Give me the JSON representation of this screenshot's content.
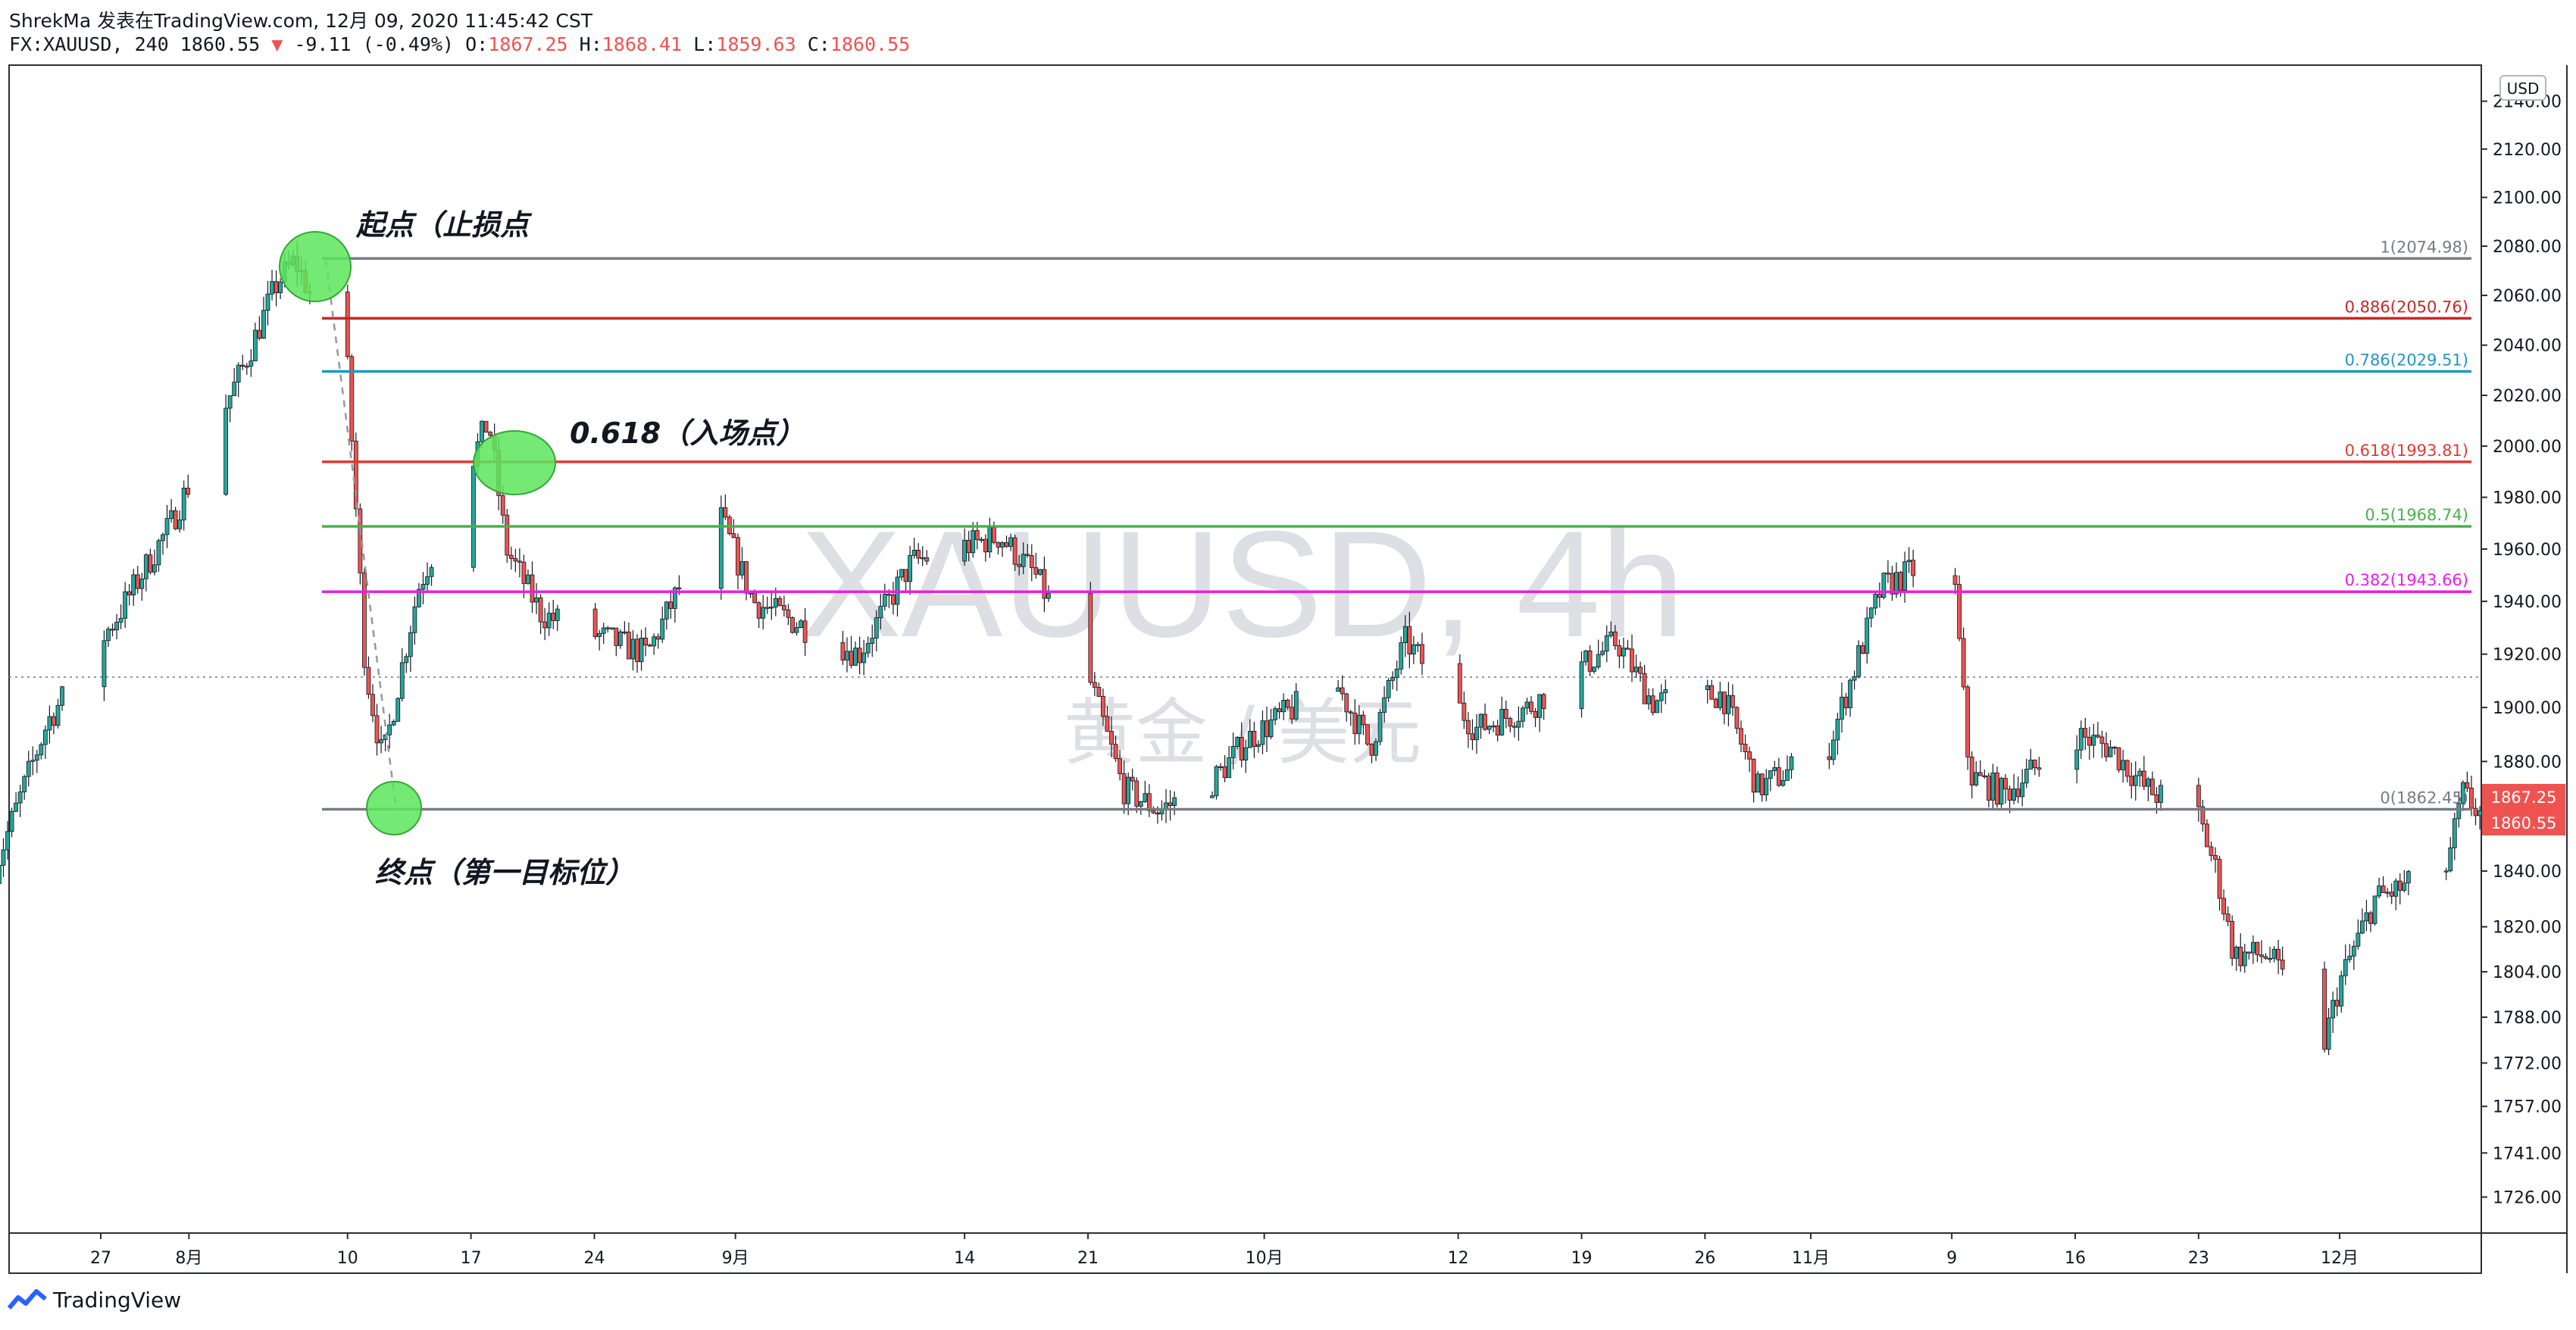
{
  "header": {
    "author_line": "ShrekMa 发表在TradingView.com, 12月 09, 2020 11:45:42 CST",
    "symbol": "FX:XAUUSD, 240",
    "last_price": "1860.55",
    "change": "-9.11 (-0.49%)",
    "o_label": "O:",
    "o_value": "1867.25",
    "h_label": "H:",
    "h_value": "1868.41",
    "l_label": "L:",
    "l_value": "1859.63",
    "c_label": "C:",
    "c_value": "1860.55"
  },
  "footer": {
    "brand": "TradingView"
  },
  "colors": {
    "up": "#26a69a",
    "down": "#ef5350",
    "accent": "#2962ff"
  },
  "chart_data": {
    "type": "candlestick",
    "title": "",
    "watermark": "XAUUSD, 4h",
    "watermark_sub": "黄金 / 美元",
    "currency_badge": "USD",
    "y_log_scale": true,
    "y_range": [
      1716,
      2150
    ],
    "y_ticks": [
      "2140.00",
      "2120.00",
      "2100.00",
      "2080.00",
      "2060.00",
      "2040.00",
      "2020.00",
      "2000.00",
      "1980.00",
      "1960.00",
      "1940.00",
      "1920.00",
      "1900.00",
      "1880.00",
      "1860.00",
      "1840.00",
      "1820.00",
      "1804.00",
      "1788.00",
      "1772.00",
      "1757.00",
      "1741.00",
      "1726.00"
    ],
    "x_ticks": [
      "27",
      "8月",
      "10",
      "17",
      "24",
      "9月",
      "14",
      "21",
      "10月",
      "12",
      "19",
      "26",
      "11月",
      "9",
      "16",
      "23",
      "12月"
    ],
    "price_markers": [
      {
        "label": "1867.25",
        "value": 1867.25
      },
      {
        "label": "1860.55",
        "value": 1860.55
      }
    ],
    "fib_levels": [
      {
        "ratio": "1",
        "value": 2074.98,
        "label": "1(2074.98)",
        "color": "#787b86"
      },
      {
        "ratio": "0.886",
        "value": 2050.76,
        "label": "0.886(2050.76)",
        "color": "#c62828"
      },
      {
        "ratio": "0.786",
        "value": 2029.51,
        "label": "0.786(2029.51)",
        "color": "#2196c4"
      },
      {
        "ratio": "0.618",
        "value": 1993.81,
        "label": "0.618(1993.81)",
        "color": "#e53935"
      },
      {
        "ratio": "0.5",
        "value": 1968.74,
        "label": "0.5(1968.74)",
        "color": "#4caf50"
      },
      {
        "ratio": "0.382",
        "value": 1943.66,
        "label": "0.382(1943.66)",
        "color": "#e91ee9"
      },
      {
        "ratio": "0",
        "value": 1862.45,
        "label": "0(1862.45)",
        "color": "#787b86"
      }
    ],
    "annotations": [
      {
        "text": "起点（止损点",
        "near": "1(2074.98)"
      },
      {
        "text": "0.618（入场点）",
        "near": "0.618(1993.81)"
      },
      {
        "text": "终点（第一目标位）",
        "near": "0(1862.45)"
      }
    ],
    "series": [
      {
        "date": "2020-07-21",
        "close": 1841
      },
      {
        "date": "2020-07-24",
        "close": 1895
      },
      {
        "date": "2020-07-28",
        "close": 1935
      },
      {
        "date": "2020-07-31",
        "close": 1970
      },
      {
        "date": "2020-08-04",
        "close": 2030
      },
      {
        "date": "2020-08-06",
        "close": 2065
      },
      {
        "date": "2020-08-07",
        "close": 2074
      },
      {
        "date": "2020-08-10",
        "close": 2030
      },
      {
        "date": "2020-08-11",
        "close": 1915
      },
      {
        "date": "2020-08-12",
        "close": 1880
      },
      {
        "date": "2020-08-14",
        "close": 1945
      },
      {
        "date": "2020-08-18",
        "close": 2010
      },
      {
        "date": "2020-08-19",
        "close": 1960
      },
      {
        "date": "2020-08-21",
        "close": 1935
      },
      {
        "date": "2020-08-25",
        "close": 1925
      },
      {
        "date": "2020-08-27",
        "close": 1920
      },
      {
        "date": "2020-08-31",
        "close": 1975
      },
      {
        "date": "2020-09-02",
        "close": 1940
      },
      {
        "date": "2020-09-08",
        "close": 1920
      },
      {
        "date": "2020-09-11",
        "close": 1955
      },
      {
        "date": "2020-09-16",
        "close": 1965
      },
      {
        "date": "2020-09-18",
        "close": 1950
      },
      {
        "date": "2020-09-21",
        "close": 1912
      },
      {
        "date": "2020-09-23",
        "close": 1870
      },
      {
        "date": "2020-09-25",
        "close": 1862
      },
      {
        "date": "2020-09-28",
        "close": 1872
      },
      {
        "date": "2020-09-30",
        "close": 1888
      },
      {
        "date": "2020-10-05",
        "close": 1910
      },
      {
        "date": "2020-10-07",
        "close": 1885
      },
      {
        "date": "2020-10-09",
        "close": 1925
      },
      {
        "date": "2020-10-13",
        "close": 1892
      },
      {
        "date": "2020-10-16",
        "close": 1900
      },
      {
        "date": "2020-10-21",
        "close": 1925
      },
      {
        "date": "2020-10-23",
        "close": 1902
      },
      {
        "date": "2020-10-27",
        "close": 1905
      },
      {
        "date": "2020-10-29",
        "close": 1870
      },
      {
        "date": "2020-11-02",
        "close": 1885
      },
      {
        "date": "2020-11-05",
        "close": 1945
      },
      {
        "date": "2020-11-09",
        "close": 1960
      },
      {
        "date": "2020-11-10",
        "close": 1875
      },
      {
        "date": "2020-11-12",
        "close": 1868
      },
      {
        "date": "2020-11-16",
        "close": 1890
      },
      {
        "date": "2020-11-18",
        "close": 1885
      },
      {
        "date": "2020-11-20",
        "close": 1870
      },
      {
        "date": "2020-11-23",
        "close": 1860
      },
      {
        "date": "2020-11-24",
        "close": 1840
      },
      {
        "date": "2020-11-25",
        "close": 1810
      },
      {
        "date": "2020-11-27",
        "close": 1810
      },
      {
        "date": "2020-11-30",
        "close": 1776
      },
      {
        "date": "2020-12-01",
        "close": 1800
      },
      {
        "date": "2020-12-03",
        "close": 1830
      },
      {
        "date": "2020-12-07",
        "close": 1840
      },
      {
        "date": "2020-12-08",
        "close": 1868
      },
      {
        "date": "2020-12-09",
        "close": 1860.55
      }
    ]
  }
}
